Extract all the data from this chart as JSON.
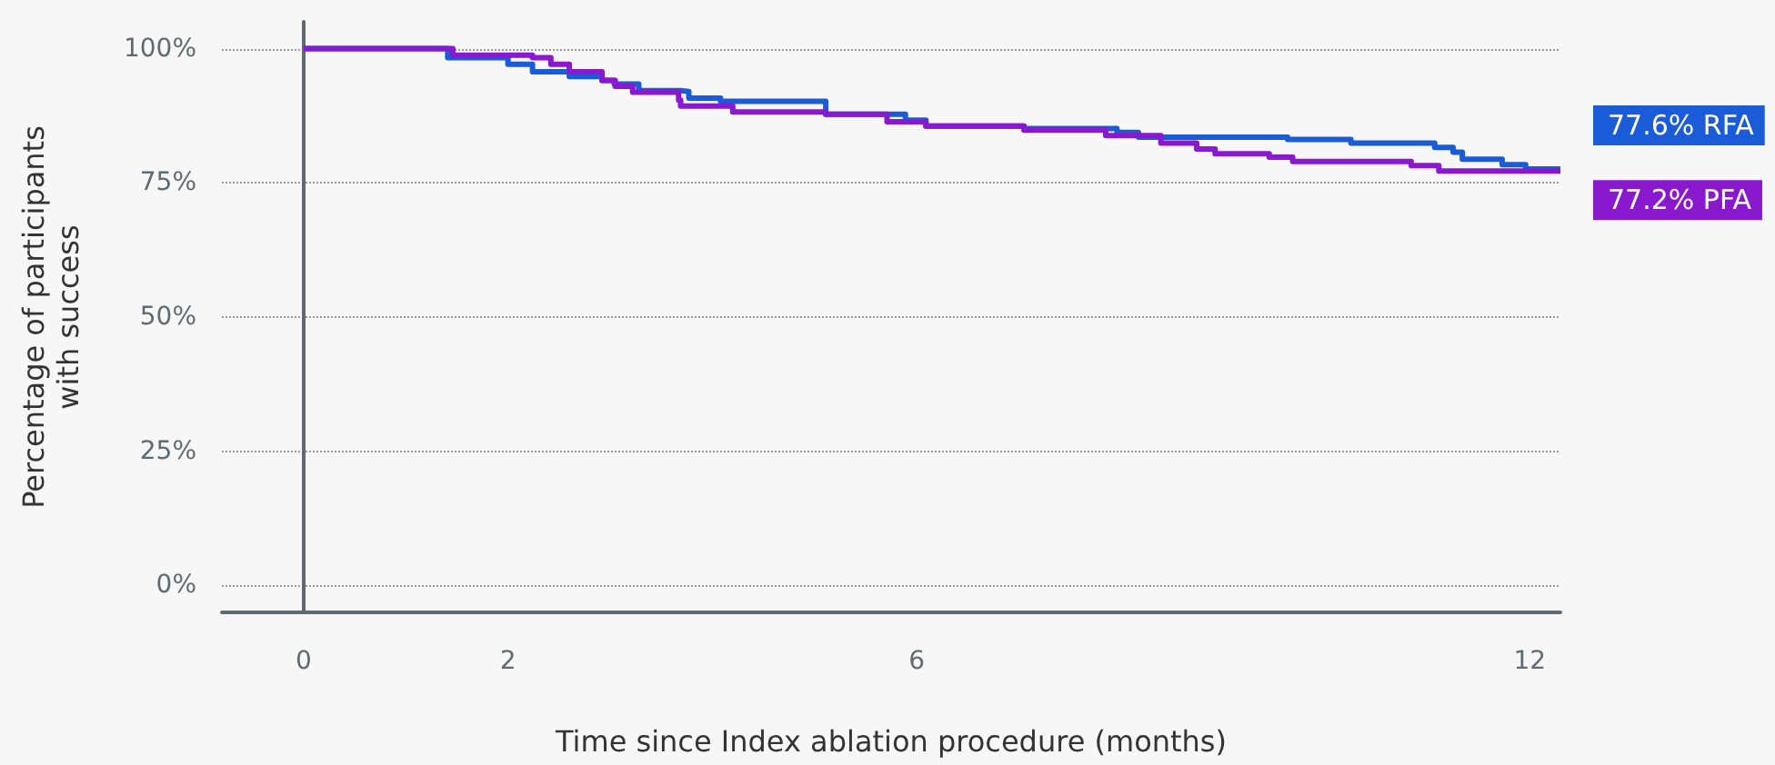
{
  "chart_data": {
    "type": "step",
    "xlabel": "Time since Index ablation procedure (months)",
    "ylabel": "Percentage of participants\nwith success",
    "xlim": [
      -0.8,
      12.3
    ],
    "xticks": [
      0,
      2,
      6,
      12
    ],
    "ylim": [
      -5,
      105
    ],
    "yticks": [
      {
        "value": 0,
        "label": "0%"
      },
      {
        "value": 25,
        "label": "25%"
      },
      {
        "value": 50,
        "label": "50%"
      },
      {
        "value": 75,
        "label": "75%"
      },
      {
        "value": 100,
        "label": "100%"
      }
    ],
    "grid": "y",
    "legend": false,
    "marker": "none",
    "line_style": "solid",
    "series": [
      {
        "name": "77.6% RFA",
        "color": "#1a5bd8",
        "x": [
          0,
          1.41,
          2.0,
          2.24,
          2.6,
          2.92,
          3.04,
          3.28,
          3.69,
          3.77,
          4.08,
          5.11,
          5.89,
          6.09,
          7.05,
          7.96,
          8.17,
          9.63,
          10.25,
          11.07,
          11.25,
          11.34,
          11.73,
          11.96,
          12.3
        ],
        "values": [
          100,
          98.3,
          97.1,
          95.7,
          94.8,
          94.1,
          93.4,
          92.2,
          92.0,
          90.8,
          90.2,
          87.8,
          86.7,
          85.6,
          85.1,
          84.4,
          83.5,
          83.1,
          82.4,
          81.6,
          80.7,
          79.4,
          78.4,
          77.6,
          77.6
        ]
      },
      {
        "name": "77.2% PFA",
        "color": "#8a18cf",
        "x": [
          0,
          1.46,
          2.24,
          2.42,
          2.6,
          2.92,
          3.05,
          3.22,
          3.67,
          3.69,
          4.2,
          5.11,
          5.71,
          6.09,
          7.05,
          7.85,
          8.39,
          8.74,
          8.92,
          9.45,
          9.68,
          10.84,
          11.11,
          12.3
        ],
        "values": [
          100,
          98.8,
          98.3,
          97.1,
          95.7,
          94.1,
          93.0,
          91.9,
          90.4,
          89.3,
          88.2,
          87.8,
          86.4,
          85.6,
          84.8,
          83.8,
          82.4,
          81.3,
          80.4,
          79.8,
          79.0,
          78.2,
          77.2,
          77.2
        ]
      }
    ]
  }
}
